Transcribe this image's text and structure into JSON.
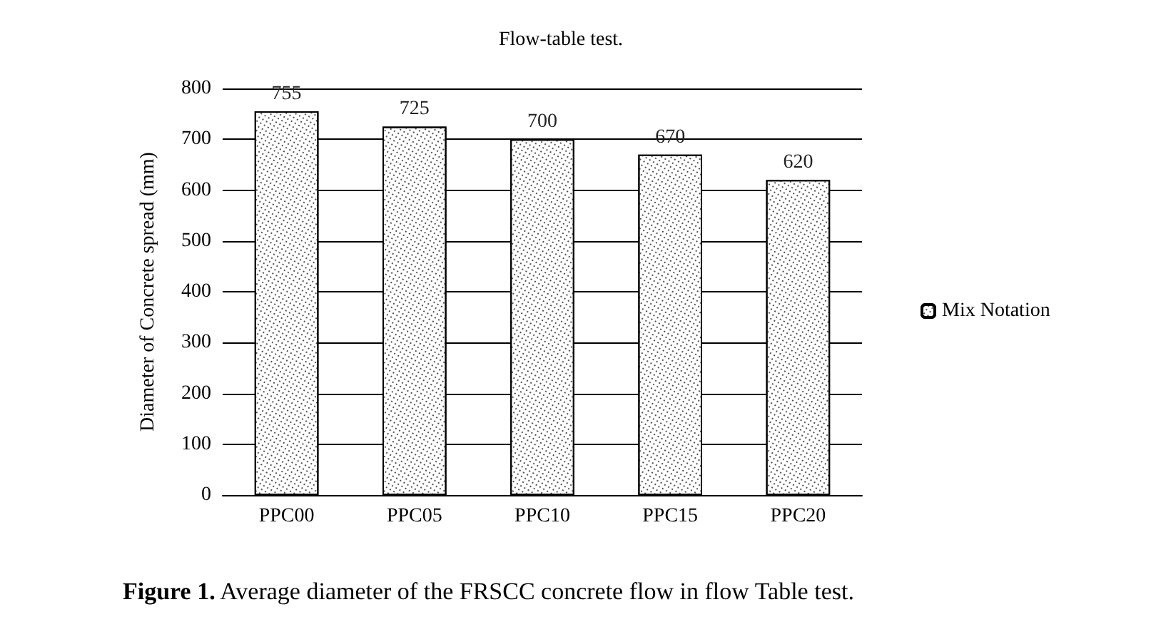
{
  "chart_data": {
    "type": "bar",
    "title": "Flow-table test.",
    "ylabel": "Diameter of Concrete spread (mm)",
    "categories": [
      "PPC00",
      "PPC05",
      "PPC10",
      "PPC15",
      "PPC20"
    ],
    "series": [
      {
        "name": "Mix Notation",
        "color": "#ffffff",
        "values": [
          755,
          725,
          700,
          670,
          620
        ]
      }
    ],
    "ylim": [
      0,
      800
    ],
    "yticks": [
      0,
      100,
      200,
      300,
      400,
      500,
      600,
      700,
      800
    ],
    "grid": "y",
    "legend": "right",
    "data_labels": true,
    "annotations": [
      "Figure 1. Average diameter of the FRSCC concrete flow in flow Table test."
    ]
  }
}
